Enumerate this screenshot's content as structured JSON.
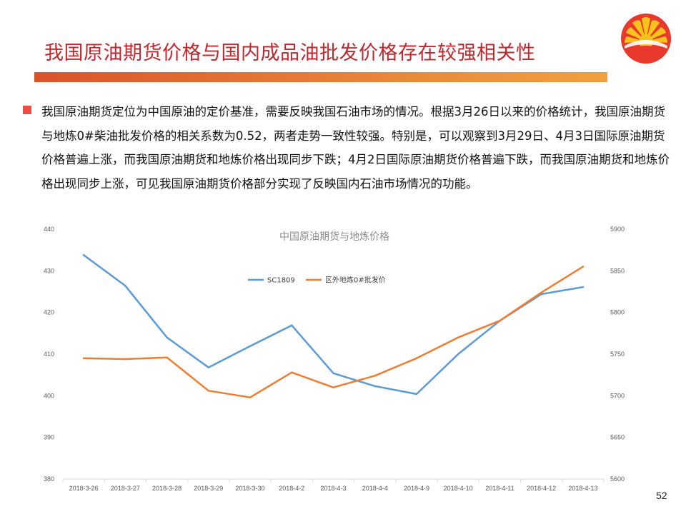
{
  "slide": {
    "title": "我国原油期货价格与国内成品油批发价格存在较强相关性",
    "bullet_text": "我国原油期货定位为中国原油的定价基准，需要反映我国石油市场的情况。根据3月26日以来的价格统计，我国原油期货与地炼0#柴油批发价格的相关系数为0.52，两者走势一致性较强。特别是，可以观察到3月29日、4月3日国际原油期货价格普遍上涨，而我国原油期货和地炼价格出现同步下跌；4月2日国际原油期货价格普遍下跌，而我国原油期货和地炼价格出现同步上涨，可见我国原油期货价格部分实现了反映国内石油市场情况的功能。",
    "page_number": "52",
    "accent_color": "#c0282d",
    "bullet_color": "#ee4d45",
    "bar_color": "#e9893b",
    "logo_icon": "petrochina-logo-icon"
  },
  "chart_data": {
    "type": "line",
    "title": "中国原油期货与地炼价格",
    "categories": [
      "2018-3-26",
      "2018-3-27",
      "2018-3-28",
      "2018-3-29",
      "2018-3-30",
      "2018-4-2",
      "2018-4-3",
      "2018-4-4",
      "2018-4-9",
      "2018-4-10",
      "2018-4-11",
      "2018-4-12",
      "2018-4-13"
    ],
    "series": [
      {
        "name": "SC1809",
        "axis": "left",
        "color": "#5b9bd5",
        "values": [
          433.8,
          426.4,
          414.0,
          406.8,
          411.9,
          416.9,
          405.4,
          402.3,
          400.4,
          410.0,
          418.0,
          424.4,
          426.1
        ]
      },
      {
        "name": "区外地炼0#批发价",
        "axis": "right",
        "color": "#ed7d31",
        "values": [
          5745,
          5744,
          5746,
          5706,
          5698,
          5728,
          5710,
          5724,
          5745,
          5770,
          5790,
          5824,
          5855
        ]
      }
    ],
    "y_left": {
      "min": 380,
      "max": 440,
      "ticks": [
        380,
        390,
        400,
        410,
        420,
        430,
        440
      ]
    },
    "y_right": {
      "min": 5600,
      "max": 5900,
      "ticks": [
        5600,
        5650,
        5700,
        5750,
        5800,
        5850,
        5900
      ]
    },
    "grid": false,
    "legend_position": "top-center"
  }
}
